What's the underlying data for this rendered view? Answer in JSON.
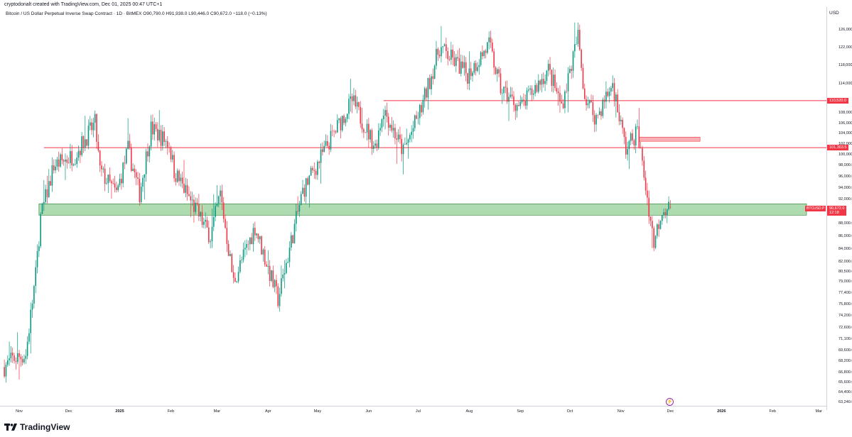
{
  "header": {
    "credit": "cryptodonalt created with TradingView.com, Dec 01, 2025 00:47 UTC+1",
    "legend": "Bitcoin / US Dollar Perpetual Inverse Swap Contract · 1D · BitMEX  O90,790.0  H91,938.0  L90,446.0  C90,672.0  −118.0 (−0.13%)"
  },
  "price_axis": {
    "currency": "USD",
    "ticks": [
      "126,000.0",
      "122,000.0",
      "118,000.0",
      "114,000.0",
      "108,000.0",
      "106,000.0",
      "104,000.0",
      "102,000.0",
      "100,000.0",
      "98,000.0",
      "96,000.0",
      "94,000.0",
      "92,000.0",
      "88,000.0",
      "86,000.0",
      "84,000.0",
      "82,000.0",
      "80,500.0",
      "79,000.0",
      "77,400.0",
      "75,800.0",
      "74,200.0",
      "72,600.0",
      "71,100.0",
      "69,600.0",
      "68,200.0",
      "66,800.0",
      "65,600.0",
      "64,400.0",
      "63,240.0"
    ],
    "tick_values": [
      126000,
      122000,
      118000,
      114000,
      108000,
      106000,
      104000,
      102000,
      100000,
      98000,
      96000,
      94000,
      92000,
      88000,
      86000,
      84000,
      82000,
      80500,
      79000,
      77400,
      75800,
      74200,
      72600,
      71100,
      69600,
      68200,
      66800,
      65600,
      64400,
      63240
    ],
    "level_labels": [
      {
        "text": "110,520.0",
        "value": 110520
      },
      {
        "text": "101,303.5",
        "value": 101303.5
      }
    ],
    "current": {
      "symbol": "BTCUSD.P",
      "price": "90,672.0",
      "countdown": "12:18"
    }
  },
  "time_axis": {
    "labels": [
      "Nov",
      "Dec",
      "2025",
      "Feb",
      "Mar",
      "Apr",
      "May",
      "Jun",
      "Jul",
      "Aug",
      "Sep",
      "Oct",
      "Nov",
      "Dec",
      "2026",
      "Feb",
      "Mar"
    ],
    "label_days": [
      0,
      30,
      61,
      92,
      120,
      151,
      181,
      212,
      242,
      273,
      304,
      334,
      365,
      395,
      426,
      457,
      485
    ]
  },
  "colors": {
    "up": "#089981",
    "down": "#f23645",
    "zone_green": "#81c784",
    "level_red": "#f23645",
    "zone_pink": "#f7a1a8"
  },
  "chart_data": {
    "type": "candlestick",
    "title": "Bitcoin / US Dollar Perpetual Inverse Swap Contract · 1D · BitMEX",
    "scale": "log",
    "ylim": [
      63240,
      126000
    ],
    "x_unit": "days since 2024-11-01",
    "close_path": [
      [
        -9,
        67500
      ],
      [
        -4,
        68500
      ],
      [
        4,
        69000
      ],
      [
        10,
        80000
      ],
      [
        13,
        89000
      ],
      [
        21,
        98000
      ],
      [
        34,
        100000
      ],
      [
        46,
        106000
      ],
      [
        49,
        97000
      ],
      [
        59,
        93000
      ],
      [
        66,
        101000
      ],
      [
        73,
        93000
      ],
      [
        80,
        105000
      ],
      [
        91,
        102000
      ],
      [
        94,
        97000
      ],
      [
        116,
        86000
      ],
      [
        122,
        93000
      ],
      [
        130,
        79000
      ],
      [
        143,
        87500
      ],
      [
        157,
        76500
      ],
      [
        172,
        93500
      ],
      [
        189,
        103000
      ],
      [
        202,
        110500
      ],
      [
        216,
        101500
      ],
      [
        221,
        109000
      ],
      [
        233,
        100500
      ],
      [
        244,
        109000
      ],
      [
        255,
        122000
      ],
      [
        272,
        116000
      ],
      [
        285,
        122500
      ],
      [
        292,
        113000
      ],
      [
        304,
        109000
      ],
      [
        321,
        117000
      ],
      [
        329,
        109500
      ],
      [
        339,
        124500
      ],
      [
        343,
        111500
      ],
      [
        350,
        107000
      ],
      [
        360,
        114000
      ],
      [
        368,
        101000
      ],
      [
        375,
        104500
      ],
      [
        385,
        85000
      ],
      [
        390,
        90500
      ],
      [
        395,
        90672
      ]
    ],
    "last_candle": {
      "open": 90790,
      "high": 91938,
      "low": 90446,
      "close": 90672
    },
    "levels": [
      {
        "price": 110520,
        "from_day": 221
      },
      {
        "price": 101303.5,
        "from_day": 15
      }
    ],
    "zones": [
      {
        "low": 89400,
        "high": 91300,
        "from_day": 12,
        "color": "green"
      },
      {
        "low": 102500,
        "high": 103300,
        "from_day": 376,
        "to_day": 413,
        "color": "pink"
      }
    ]
  },
  "brand": {
    "logo_text": "TradingView"
  }
}
